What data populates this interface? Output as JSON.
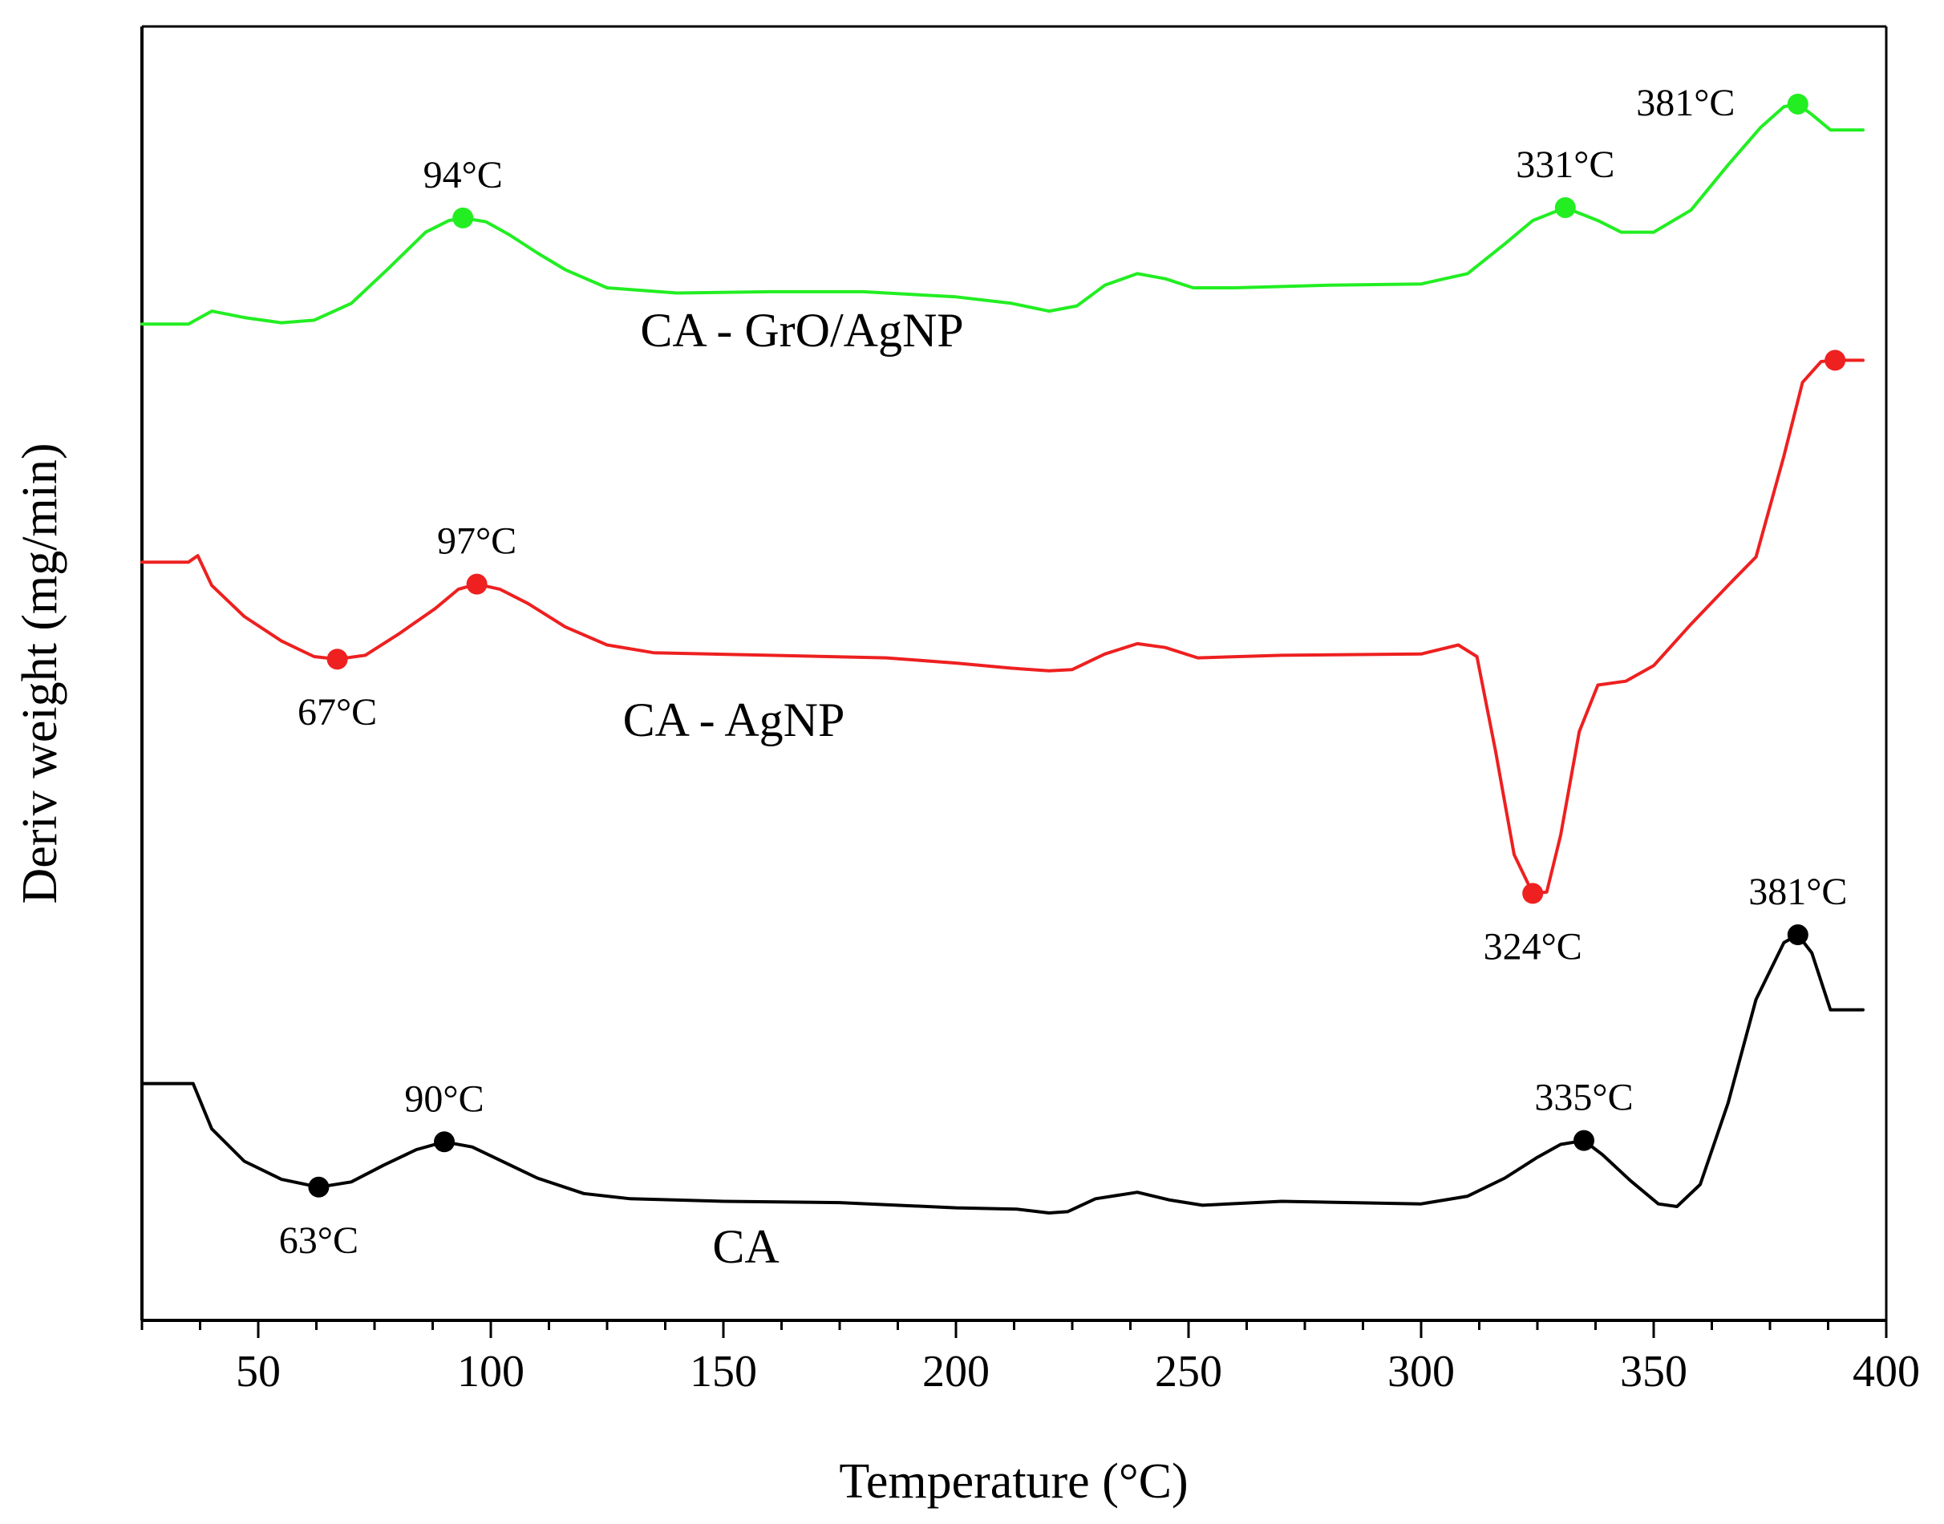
{
  "chart_data": {
    "type": "line",
    "title": "",
    "xlabel": "Temperature (°C)",
    "ylabel": "Deriv weight (mg/min)",
    "xlim": [
      25,
      400
    ],
    "ylim": [
      0,
      100
    ],
    "x_ticks": [
      50,
      100,
      150,
      200,
      250,
      300,
      350,
      400
    ],
    "y_ticks": [],
    "grid": false,
    "legend": "none (series labelled inline)",
    "series": [
      {
        "name": "CA - GrO/AgNP",
        "label": "CA - GrO/AgNP",
        "color": "#22ee22",
        "points": [
          [
            25,
            77.0
          ],
          [
            35,
            77.0
          ],
          [
            40,
            78.0
          ],
          [
            47,
            77.5
          ],
          [
            55,
            77.1
          ],
          [
            62,
            77.3
          ],
          [
            70,
            78.6
          ],
          [
            78,
            81.3
          ],
          [
            86,
            84.1
          ],
          [
            91,
            85.0
          ],
          [
            94,
            85.2
          ],
          [
            99,
            84.9
          ],
          [
            104,
            83.9
          ],
          [
            110,
            82.5
          ],
          [
            116,
            81.2
          ],
          [
            125,
            79.8
          ],
          [
            140,
            79.4
          ],
          [
            160,
            79.5
          ],
          [
            180,
            79.5
          ],
          [
            200,
            79.1
          ],
          [
            212,
            78.6
          ],
          [
            220,
            78.0
          ],
          [
            226,
            78.4
          ],
          [
            232,
            80.0
          ],
          [
            239,
            80.9
          ],
          [
            245,
            80.5
          ],
          [
            251,
            79.8
          ],
          [
            260,
            79.8
          ],
          [
            280,
            80.0
          ],
          [
            300,
            80.1
          ],
          [
            310,
            80.9
          ],
          [
            318,
            83.2
          ],
          [
            324,
            85.0
          ],
          [
            331,
            86.0
          ],
          [
            338,
            85.0
          ],
          [
            343,
            84.1
          ],
          [
            350,
            84.1
          ],
          [
            358,
            85.8
          ],
          [
            366,
            89.3
          ],
          [
            373,
            92.2
          ],
          [
            378,
            93.8
          ],
          [
            381,
            94.0
          ],
          [
            384,
            93.2
          ],
          [
            388,
            92.0
          ],
          [
            395,
            92.0
          ]
        ],
        "markers": [
          {
            "x": 94,
            "y": 85.2,
            "label": "94°C",
            "pos": "above"
          },
          {
            "x": 331,
            "y": 86.0,
            "label": "331°C",
            "pos": "above"
          },
          {
            "x": 381,
            "y": 94.0,
            "label": "381°C",
            "pos": "left"
          }
        ]
      },
      {
        "name": "CA - AgNP",
        "label": "CA - AgNP",
        "color": "#ee2020",
        "points": [
          [
            25,
            58.6
          ],
          [
            35,
            58.6
          ],
          [
            37,
            59.1
          ],
          [
            40,
            56.8
          ],
          [
            47,
            54.4
          ],
          [
            55,
            52.5
          ],
          [
            62,
            51.3
          ],
          [
            67,
            51.1
          ],
          [
            73,
            51.4
          ],
          [
            80,
            53.0
          ],
          [
            88,
            55.0
          ],
          [
            93,
            56.5
          ],
          [
            97,
            56.9
          ],
          [
            102,
            56.5
          ],
          [
            108,
            55.4
          ],
          [
            116,
            53.6
          ],
          [
            125,
            52.2
          ],
          [
            135,
            51.6
          ],
          [
            160,
            51.4
          ],
          [
            185,
            51.2
          ],
          [
            200,
            50.8
          ],
          [
            212,
            50.4
          ],
          [
            220,
            50.2
          ],
          [
            225,
            50.3
          ],
          [
            232,
            51.5
          ],
          [
            239,
            52.3
          ],
          [
            245,
            52.0
          ],
          [
            252,
            51.2
          ],
          [
            270,
            51.4
          ],
          [
            300,
            51.5
          ],
          [
            308,
            52.2
          ],
          [
            312,
            51.3
          ],
          [
            316,
            44.0
          ],
          [
            320,
            36.0
          ],
          [
            324,
            33.0
          ],
          [
            327,
            33.1
          ],
          [
            330,
            37.5
          ],
          [
            334,
            45.5
          ],
          [
            338,
            49.1
          ],
          [
            344,
            49.4
          ],
          [
            350,
            50.6
          ],
          [
            358,
            53.8
          ],
          [
            366,
            56.8
          ],
          [
            372,
            59.0
          ],
          [
            378,
            66.8
          ],
          [
            382,
            72.5
          ],
          [
            386,
            74.1
          ],
          [
            389,
            74.2
          ],
          [
            395,
            74.2
          ]
        ],
        "markers": [
          {
            "x": 67,
            "y": 51.1,
            "label": "67°C",
            "pos": "below"
          },
          {
            "x": 97,
            "y": 56.9,
            "label": "97°C",
            "pos": "above"
          },
          {
            "x": 324,
            "y": 33.0,
            "label": "324°C",
            "pos": "below"
          },
          {
            "x": 389,
            "y": 74.2,
            "label": "",
            "pos": "none"
          }
        ]
      },
      {
        "name": "CA",
        "label": "CA",
        "color": "#000000",
        "points": [
          [
            25,
            18.3
          ],
          [
            36,
            18.3
          ],
          [
            40,
            14.8
          ],
          [
            47,
            12.3
          ],
          [
            55,
            10.9
          ],
          [
            63,
            10.3
          ],
          [
            70,
            10.7
          ],
          [
            77,
            12.0
          ],
          [
            84,
            13.2
          ],
          [
            90,
            13.8
          ],
          [
            96,
            13.4
          ],
          [
            103,
            12.2
          ],
          [
            110,
            11.0
          ],
          [
            120,
            9.8
          ],
          [
            130,
            9.4
          ],
          [
            150,
            9.2
          ],
          [
            175,
            9.1
          ],
          [
            200,
            8.7
          ],
          [
            213,
            8.6
          ],
          [
            220,
            8.3
          ],
          [
            224,
            8.4
          ],
          [
            230,
            9.4
          ],
          [
            239,
            9.9
          ],
          [
            246,
            9.3
          ],
          [
            253,
            8.9
          ],
          [
            270,
            9.2
          ],
          [
            300,
            9.0
          ],
          [
            310,
            9.6
          ],
          [
            318,
            11.0
          ],
          [
            325,
            12.6
          ],
          [
            330,
            13.6
          ],
          [
            335,
            13.9
          ],
          [
            339,
            12.8
          ],
          [
            345,
            10.8
          ],
          [
            351,
            9.0
          ],
          [
            355,
            8.8
          ],
          [
            360,
            10.5
          ],
          [
            366,
            16.8
          ],
          [
            372,
            24.8
          ],
          [
            378,
            29.2
          ],
          [
            381,
            29.8
          ],
          [
            384,
            28.4
          ],
          [
            388,
            24.0
          ],
          [
            391,
            24.0
          ],
          [
            395,
            24.0
          ]
        ],
        "markers": [
          {
            "x": 63,
            "y": 10.3,
            "label": "63°C",
            "pos": "below"
          },
          {
            "x": 90,
            "y": 13.8,
            "label": "90°C",
            "pos": "above"
          },
          {
            "x": 335,
            "y": 13.9,
            "label": "335°C",
            "pos": "above"
          },
          {
            "x": 381,
            "y": 29.8,
            "label": "381°C",
            "pos": "above"
          }
        ]
      }
    ]
  }
}
